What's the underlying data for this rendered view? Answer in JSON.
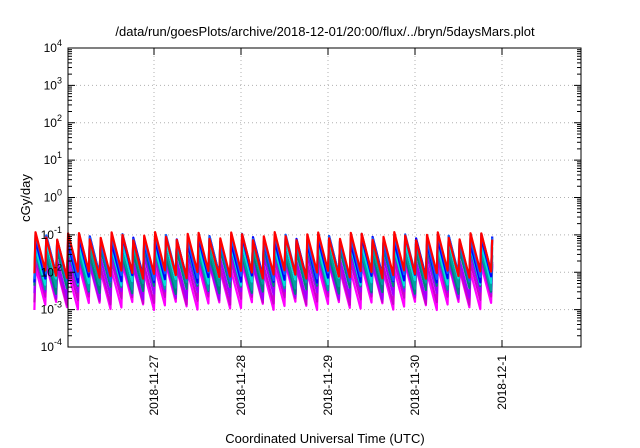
{
  "chart_data": {
    "type": "line",
    "title": "/data/run/goesPlots/archive/2018-12-01/20:00/flux/../bryn/5daysMars.plot",
    "xlabel": "Coordinated Universal Time (UTC)",
    "ylabel": "cGy/day",
    "yscale": "log",
    "ylim": [
      0.0001,
      10000
    ],
    "xlim_days": [
      -1.4,
      3.95
    ],
    "grid": true,
    "x_tick_labels": [
      "2018-11-27",
      "2018-11-28",
      "2018-11-29",
      "2018-11-30",
      "2018-12-1"
    ],
    "y_tick_labels": [
      {
        "base": "10",
        "exp": "-4"
      },
      {
        "base": "10",
        "exp": "-3"
      },
      {
        "base": "10",
        "exp": "-2"
      },
      {
        "base": "10",
        "exp": "-1"
      },
      {
        "base": "10",
        "exp": "0"
      },
      {
        "base": "10",
        "exp": "1"
      },
      {
        "base": "10",
        "exp": "2"
      },
      {
        "base": "10",
        "exp": "3"
      },
      {
        "base": "10",
        "exp": "4"
      }
    ],
    "series": [
      {
        "color": "#ff00ff",
        "low": 0.0013,
        "high": 0.013
      },
      {
        "color": "#cc00cc",
        "low": 0.0018,
        "high": 0.018
      },
      {
        "color": "#a000ff",
        "low": 0.0025,
        "high": 0.025
      },
      {
        "color": "#008080",
        "low": 0.0035,
        "high": 0.035
      },
      {
        "color": "#00a0a0",
        "low": 0.0045,
        "high": 0.045
      },
      {
        "color": "#00dddd",
        "low": 0.006,
        "high": 0.06
      },
      {
        "color": "#0000ff",
        "low": 0.007,
        "high": 0.075
      },
      {
        "color": "#1060ff",
        "low": 0.008,
        "high": 0.085
      },
      {
        "color": "#ff0000",
        "low": 0.009,
        "high": 0.095
      }
    ],
    "cycles_per_day": 8
  }
}
